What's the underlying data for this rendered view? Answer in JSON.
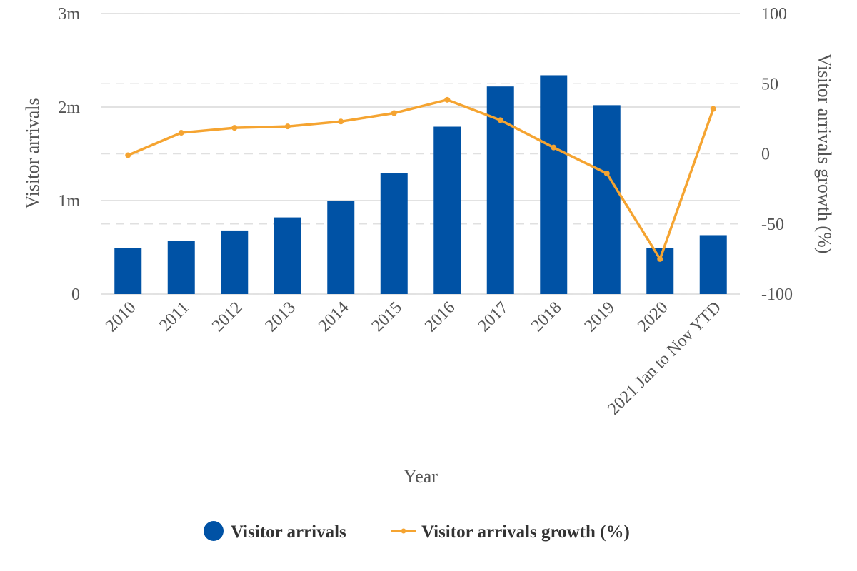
{
  "chart_data": {
    "type": "bar",
    "categories": [
      "2010",
      "2011",
      "2012",
      "2013",
      "2014",
      "2015",
      "2016",
      "2017",
      "2018",
      "2019",
      "2020",
      "2021 Jan to Nov YTD"
    ],
    "xlabel": "Year",
    "ylabel": "Visitor arrivals",
    "y2label": "Visitor arrivals growth (%)",
    "ylim": [
      0,
      3000000
    ],
    "y2lim": [
      -100,
      100
    ],
    "y_ticks": [
      {
        "value": 0,
        "label": "0"
      },
      {
        "value": 1000000,
        "label": "1m"
      },
      {
        "value": 2000000,
        "label": "2m"
      },
      {
        "value": 3000000,
        "label": "3m"
      }
    ],
    "y2_ticks": [
      {
        "value": -100,
        "label": "-100"
      },
      {
        "value": -50,
        "label": "-50"
      },
      {
        "value": 0,
        "label": "0"
      },
      {
        "value": 50,
        "label": "50"
      },
      {
        "value": 100,
        "label": "100"
      }
    ],
    "series": [
      {
        "name": "Visitor arrivals",
        "type": "bar",
        "axis": "left",
        "color": "#0052a5",
        "values": [
          490000,
          570000,
          680000,
          820000,
          1000000,
          1290000,
          1790000,
          2220000,
          2340000,
          2020000,
          490000,
          630000
        ]
      },
      {
        "name": "Visitor arrivals growth (%)",
        "type": "line",
        "axis": "right",
        "color": "#f5a431",
        "values": [
          -1,
          15,
          18.5,
          19.5,
          23,
          29,
          38.5,
          24,
          4.5,
          -14,
          -75,
          32
        ]
      }
    ],
    "grid": true,
    "legend": "bottom-center"
  }
}
